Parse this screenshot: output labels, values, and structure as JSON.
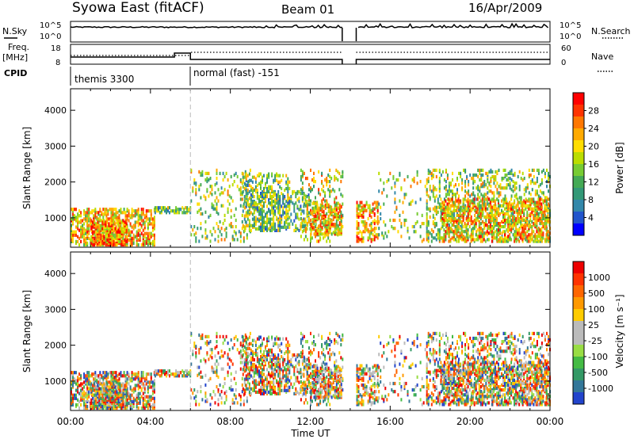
{
  "header": {
    "station": "Syowa East (fitACF)",
    "beam": "Beam 01",
    "date": "16/Apr/2009"
  },
  "strip": {
    "nsky_label": "N.Sky",
    "nsky_ticks": [
      "10^5",
      "10^0"
    ],
    "nsearch_label": "N.Search",
    "nsearch_ticks": [
      "10^5",
      "10^0"
    ],
    "freq_label_1": "Freq.",
    "freq_label_2": "[MHz]",
    "freq_ticks": [
      "18",
      "8"
    ],
    "nave_label": "Nave",
    "nave_ticks": [
      "60",
      "0"
    ],
    "cpid_label": "CPID",
    "cpid_segments": [
      {
        "name": "themis 3300",
        "start_h": 0,
        "end_h": 6
      },
      {
        "name": "normal (fast) -151",
        "start_h": 6,
        "end_h": 24
      }
    ],
    "data_gap_h": [
      13.6,
      14.3
    ]
  },
  "chart_data": [
    {
      "type": "heatmap",
      "variable": "Power",
      "ylabel": "Slant Range [km]",
      "yticks": [
        "4000",
        "3000",
        "2000",
        "1000"
      ],
      "ylim": [
        180,
        4600
      ],
      "xlim": [
        0,
        24
      ],
      "colorbar_label": "Power [dB]",
      "colorbar_ticks": [
        "28",
        "24",
        "20",
        "16",
        "12",
        "8",
        "4"
      ],
      "colorbar_colors": [
        "#0000ff",
        "#2255cc",
        "#3388aa",
        "#339977",
        "#44aa55",
        "#77cc33",
        "#bbdd00",
        "#ffdd00",
        "#ffaa00",
        "#ff7700",
        "#ff3300",
        "#ff0000"
      ]
    },
    {
      "type": "heatmap",
      "variable": "Velocity",
      "ylabel": "Slant Range [km]",
      "yticks": [
        "4000",
        "3000",
        "2000",
        "1000"
      ],
      "ylim": [
        180,
        4600
      ],
      "xlim": [
        0,
        24
      ],
      "colorbar_label": "Velocity [m s⁻¹]",
      "colorbar_ticks": [
        "1000",
        "500",
        "100",
        "25",
        "-25",
        "-100",
        "-500",
        "-1000"
      ],
      "colorbar_colors": [
        "#2244cc",
        "#337799",
        "#339966",
        "#44bb44",
        "#99dd44",
        "#bbbbbb",
        "#bbbbbb",
        "#ffcc00",
        "#ff9900",
        "#ff6600",
        "#ff3300",
        "#ee0000"
      ]
    }
  ],
  "xaxis": {
    "ticks": [
      "00:00",
      "04:00",
      "08:00",
      "12:00",
      "16:00",
      "20:00",
      "00:00"
    ],
    "tick_hours": [
      0,
      4,
      8,
      12,
      16,
      20,
      24
    ],
    "label": "Time UT"
  }
}
